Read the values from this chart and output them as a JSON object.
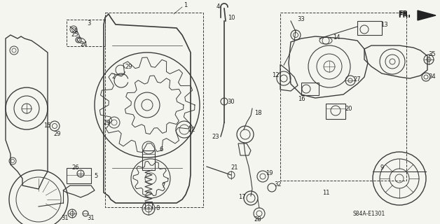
{
  "bg_color": "#f5f5f0",
  "diagram_code": "S84A-E1301",
  "fr_label": "FR.",
  "fig_width": 6.28,
  "fig_height": 3.2,
  "dpi": 100,
  "lc": "#3a3a3a",
  "lw": 0.7
}
